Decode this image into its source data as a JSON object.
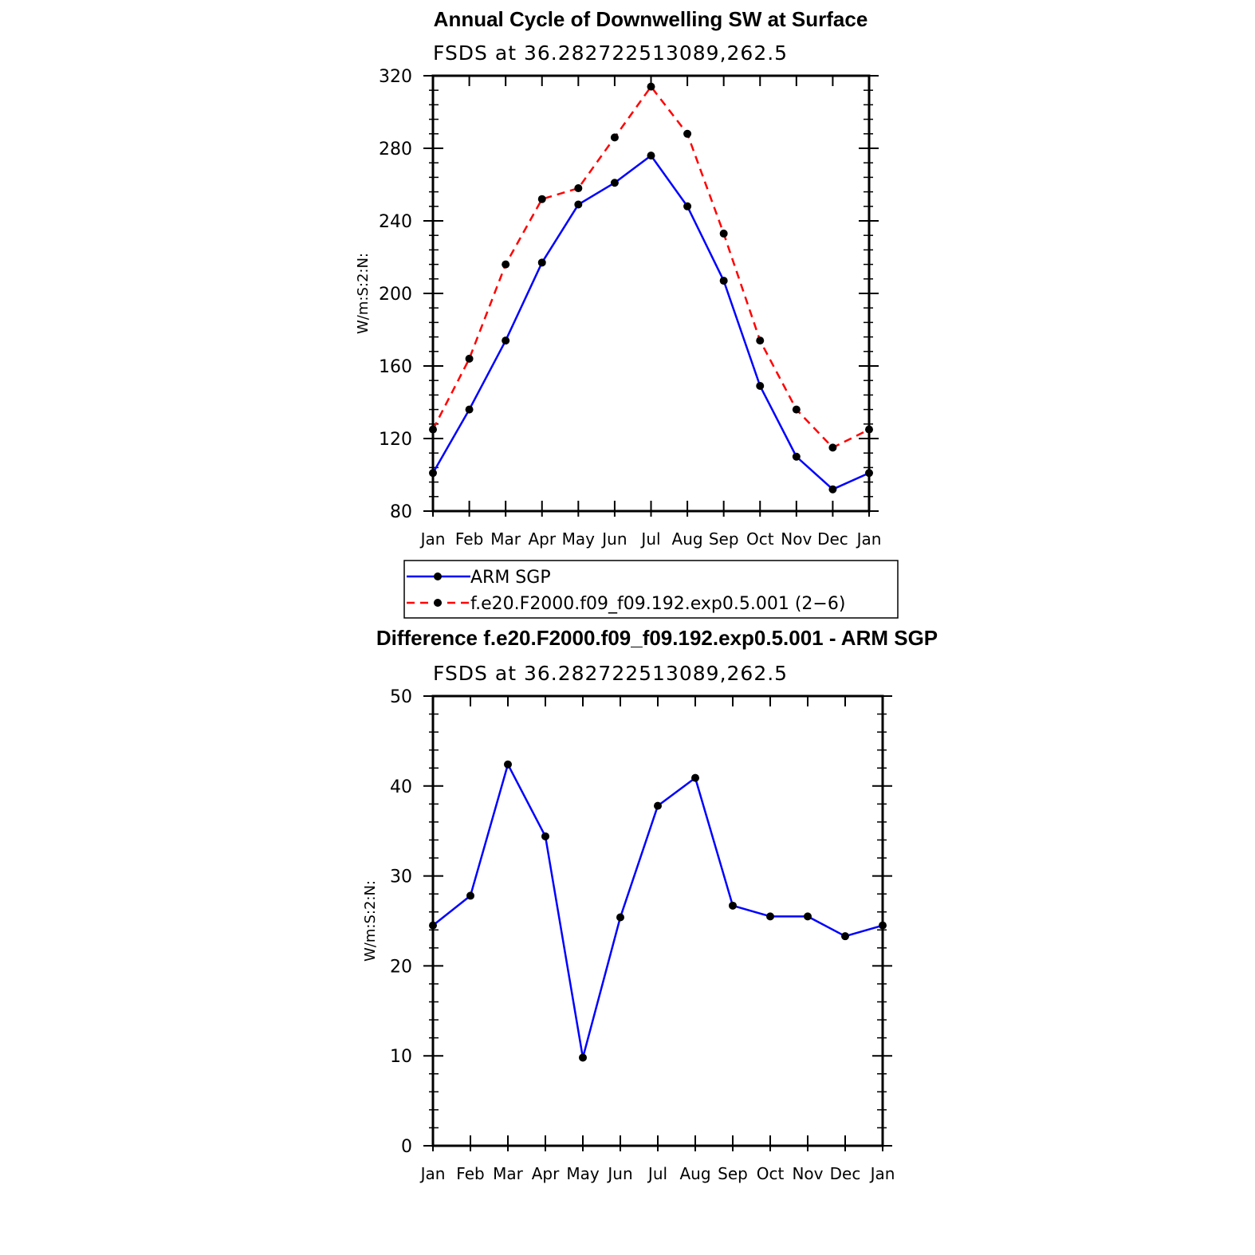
{
  "chart_data": [
    {
      "type": "line",
      "title": "Annual Cycle of Downwelling SW at Surface",
      "subtitle": "FSDS at 36.282722513089,262.5",
      "ylabel": "W/m:S:2:N:",
      "xlabel": "",
      "ylim": [
        80,
        320
      ],
      "yticks": [
        80,
        120,
        160,
        200,
        240,
        280,
        320
      ],
      "categories": [
        "Jan",
        "Feb",
        "Mar",
        "Apr",
        "May",
        "Jun",
        "Jul",
        "Aug",
        "Sep",
        "Oct",
        "Nov",
        "Dec",
        "Jan"
      ],
      "series": [
        {
          "name": "ARM SGP",
          "color": "#0000ff",
          "dash": "solid",
          "values": [
            101,
            136,
            174,
            217,
            249,
            261,
            276,
            248,
            207,
            149,
            110,
            92,
            101
          ]
        },
        {
          "name": "f.e20.F2000.f09_f09.192.exp0.5.001 (2−6)",
          "color": "#ff0000",
          "dash": "dashed",
          "values": [
            125,
            164,
            216,
            252,
            258,
            286,
            314,
            288,
            233,
            174,
            136,
            115,
            125
          ]
        }
      ],
      "legend": "below"
    },
    {
      "type": "line",
      "title": "Difference f.e20.F2000.f09_f09.192.exp0.5.001 - ARM SGP",
      "subtitle": "FSDS at 36.282722513089,262.5",
      "ylabel": "W/m:S:2:N:",
      "xlabel": "",
      "ylim": [
        0,
        50
      ],
      "yticks": [
        0,
        10,
        20,
        30,
        40,
        50
      ],
      "categories": [
        "Jan",
        "Feb",
        "Mar",
        "Apr",
        "May",
        "Jun",
        "Jul",
        "Aug",
        "Sep",
        "Oct",
        "Nov",
        "Dec",
        "Jan"
      ],
      "series": [
        {
          "name": "Difference",
          "color": "#0000ff",
          "dash": "solid",
          "values": [
            24.5,
            27.8,
            42.4,
            34.4,
            9.8,
            25.4,
            37.8,
            40.9,
            26.7,
            25.5,
            25.5,
            23.3,
            24.5
          ]
        }
      ]
    }
  ]
}
